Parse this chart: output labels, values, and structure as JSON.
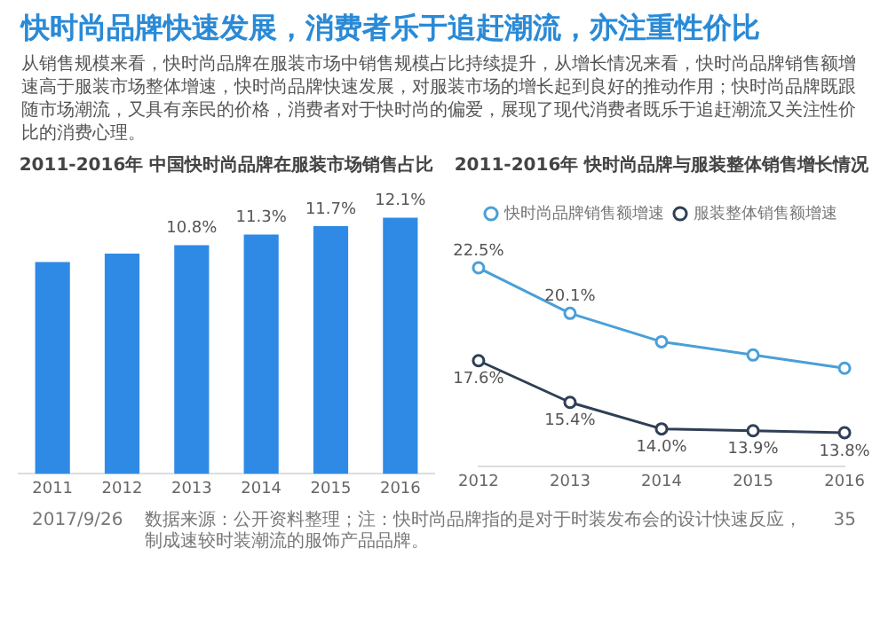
{
  "chart_data": [
    {
      "type": "other",
      "title": "快时尚品牌快速发展，消费者乐于追赶潮流，亦注重性价比",
      "subtitle": "从销售规模来看，快时尚品牌在服装市场中销售规模占比持续提升，从增长情况来看，快时尚品牌销售额增速高于服装市场整体增速，快时尚品牌快速发展，对服装市场的增长起到良好的推动作用；快时尚品牌既跟随市场潮流，又具有亲民的价格，消费者对于快时尚的偏爱，展现了现代消费者既乐于追赶潮流又关注性价比的消费心理。",
      "annotations": [
        "2017/9/26",
        "数据来源：公开资料整理；注：快时尚品牌指的是对于时装发布会的设计快速反应，制成速较时装潮流的服饰产品品牌。",
        "35"
      ]
    },
    {
      "type": "bar",
      "title": "2011-2016年 中国快时尚品牌在服装市场销售占比",
      "categories": [
        "2011",
        "2012",
        "2013",
        "2014",
        "2015",
        "2016"
      ],
      "values": [
        10.0,
        10.4,
        10.8,
        11.3,
        11.7,
        12.1
      ],
      "value_labels": [
        null,
        null,
        "10.8%",
        "11.3%",
        "11.7%",
        "12.1%"
      ],
      "color": "#2f8ae5",
      "tick_labels": "x",
      "grid": false,
      "legend": false
    },
    {
      "type": "line",
      "title": "2011-2016年 快时尚品牌与服装整体销售增长情况",
      "categories": [
        "2012",
        "2013",
        "2014",
        "2015",
        "2016"
      ],
      "series": [
        {
          "name": "快时尚品牌销售额增速",
          "color": "#4a9fd8",
          "values": [
            22.5,
            20.1,
            18.6,
            17.9,
            17.2
          ],
          "value_labels": [
            "22.5%",
            "20.1%",
            null,
            null,
            null
          ]
        },
        {
          "name": "服装整体销售额增速",
          "color": "#2f3f55",
          "values": [
            17.6,
            15.4,
            14.0,
            13.9,
            13.8
          ],
          "value_labels": [
            "17.6%",
            "15.4%",
            "14.0%",
            "13.9%",
            "13.8%"
          ]
        }
      ],
      "tick_labels": "x",
      "marker": "circle",
      "line_style": "solid",
      "grid": false,
      "legend": "top"
    }
  ]
}
